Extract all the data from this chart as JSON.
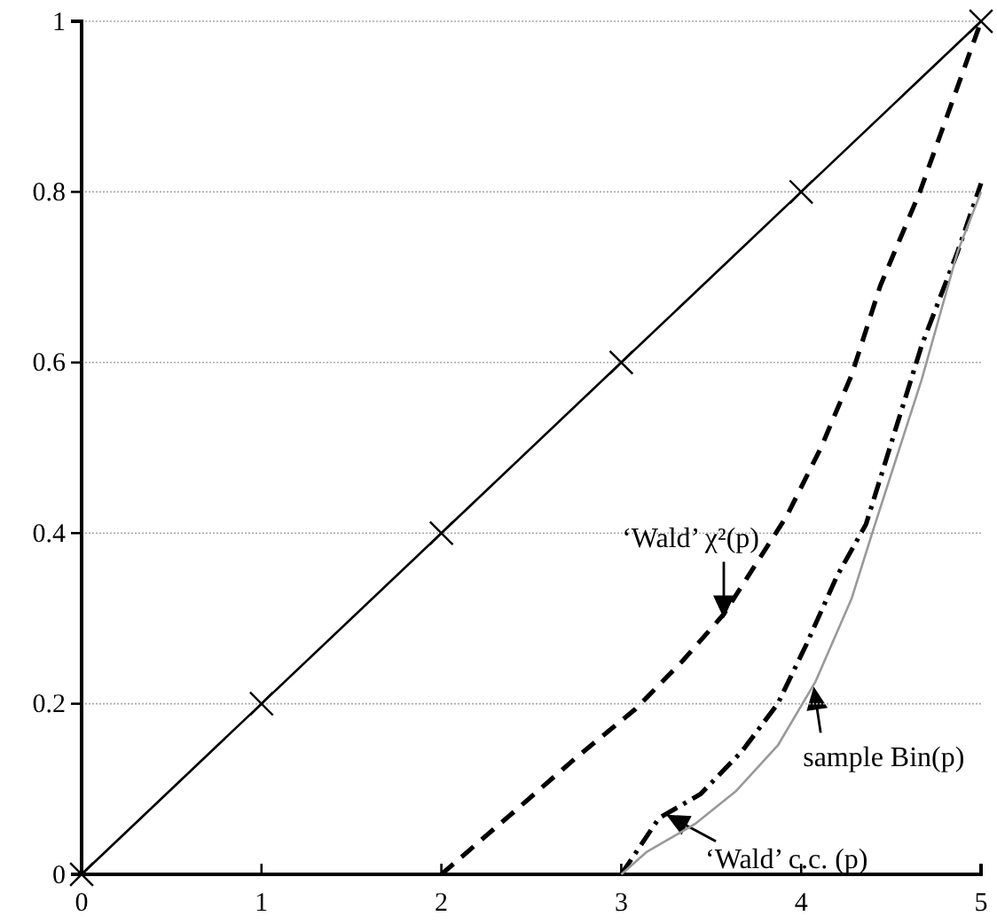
{
  "chart_data": {
    "type": "line",
    "xlim": [
      0,
      5
    ],
    "ylim": [
      0,
      1
    ],
    "xticks": [
      0,
      1,
      2,
      3,
      4,
      5
    ],
    "yticks": [
      0,
      0.2,
      0.4,
      0.6,
      0.8,
      1
    ],
    "grid": "y",
    "series": [
      {
        "color": "#000000",
        "x": [
          0,
          1,
          2,
          3,
          4,
          5
        ],
        "values": [
          0,
          0.2,
          0.4,
          0.6,
          0.8,
          1
        ],
        "marker": "cross",
        "line_style": "solid"
      },
      {
        "color": "#000000",
        "x": [
          2,
          2.44,
          2.75,
          3.08,
          3.34,
          3.57,
          3.92,
          4.11,
          4.28,
          4.44,
          4.66,
          5
        ],
        "values": [
          0,
          0.08,
          0.137,
          0.194,
          0.25,
          0.305,
          0.42,
          0.5,
          0.585,
          0.69,
          0.8,
          1
        ],
        "marker": "none",
        "line_style": "dashed"
      },
      {
        "color": "#000000",
        "x": [
          3,
          3.21,
          3.44,
          3.67,
          3.87,
          4.03,
          4.2,
          4.36,
          4.67,
          4.87,
          5
        ],
        "values": [
          0,
          0.066,
          0.094,
          0.144,
          0.2,
          0.27,
          0.35,
          0.41,
          0.62,
          0.73,
          0.81
        ],
        "marker": "none",
        "line_style": "dashdot"
      },
      {
        "color": "#999999",
        "x": [
          3,
          3.14,
          3.41,
          3.64,
          3.87,
          4.08,
          4.28,
          4.41,
          4.67,
          4.87,
          5
        ],
        "values": [
          0,
          0.026,
          0.059,
          0.098,
          0.151,
          0.226,
          0.323,
          0.41,
          0.58,
          0.73,
          0.8
        ],
        "marker": "none",
        "line_style": "solid"
      }
    ],
    "annotations": [
      {
        "text": "‘Wald’ χ²(p)",
        "x": 3.57,
        "y": 0.3
      },
      {
        "text": "‘Wald’ c.c. (p)",
        "x": 3.25,
        "y": 0.07
      },
      {
        "text": "sample Bin(p)",
        "x": 4.07,
        "y": 0.22
      }
    ]
  }
}
